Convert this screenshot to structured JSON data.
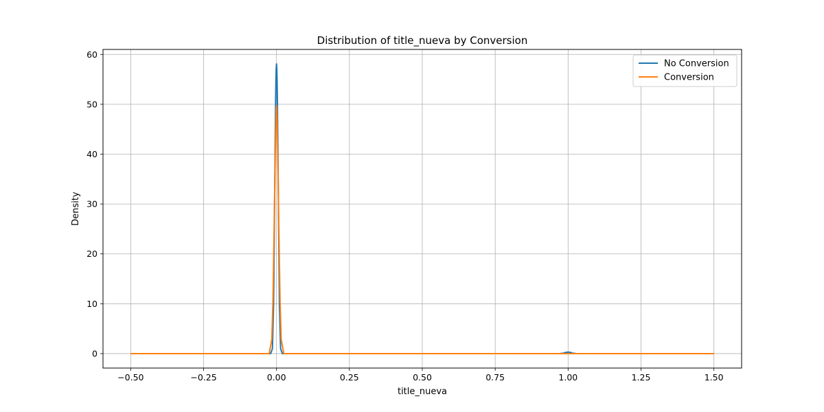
{
  "chart_data": {
    "type": "line",
    "title": "Distribution of title_nueva by Conversion",
    "xlabel": "title_nueva",
    "ylabel": "Density",
    "xlim": [
      -0.595,
      1.595
    ],
    "ylim": [
      -2.9,
      61.0
    ],
    "xticks": [
      -0.5,
      -0.25,
      0.0,
      0.25,
      0.5,
      0.75,
      1.0,
      1.25,
      1.5
    ],
    "xtick_labels": [
      "−0.50",
      "−0.25",
      "0.00",
      "0.25",
      "0.50",
      "0.75",
      "1.00",
      "1.25",
      "1.50"
    ],
    "yticks": [
      0,
      10,
      20,
      30,
      40,
      50,
      60
    ],
    "ytick_labels": [
      "0",
      "10",
      "20",
      "30",
      "40",
      "50",
      "60"
    ],
    "grid": true,
    "legend_position": "top-right",
    "series": [
      {
        "name": "No Conversion",
        "color": "#1f77b4",
        "x": [
          -0.5,
          -0.02,
          -0.014,
          -0.01,
          -0.007,
          -0.005,
          -0.003,
          -0.002,
          -0.001,
          0.0,
          0.001,
          0.002,
          0.003,
          0.005,
          0.007,
          0.01,
          0.014,
          0.02,
          0.03,
          0.97,
          0.985,
          0.993,
          1.0,
          1.007,
          1.015,
          1.03,
          1.5
        ],
        "y": [
          0,
          0,
          1.0,
          9.7,
          27.1,
          40.4,
          50.9,
          54.7,
          57.2,
          58.1,
          57.2,
          54.7,
          50.9,
          40.4,
          27.1,
          9.7,
          1.0,
          0,
          0,
          0,
          0.1,
          0.25,
          0.3,
          0.25,
          0.1,
          0,
          0
        ]
      },
      {
        "name": "Conversion",
        "color": "#ff7f0e",
        "x": [
          -0.5,
          -0.025,
          -0.016,
          -0.012,
          -0.008,
          -0.006,
          -0.004,
          -0.002,
          -0.001,
          0.0,
          0.001,
          0.002,
          0.004,
          0.006,
          0.008,
          0.012,
          0.016,
          0.025,
          0.04,
          1.5
        ],
        "y": [
          0,
          0,
          2.9,
          11.0,
          25.5,
          33.5,
          40.9,
          46.9,
          49.0,
          49.7,
          49.0,
          46.9,
          40.9,
          33.5,
          25.5,
          11.0,
          2.9,
          0,
          0,
          0
        ]
      }
    ]
  }
}
